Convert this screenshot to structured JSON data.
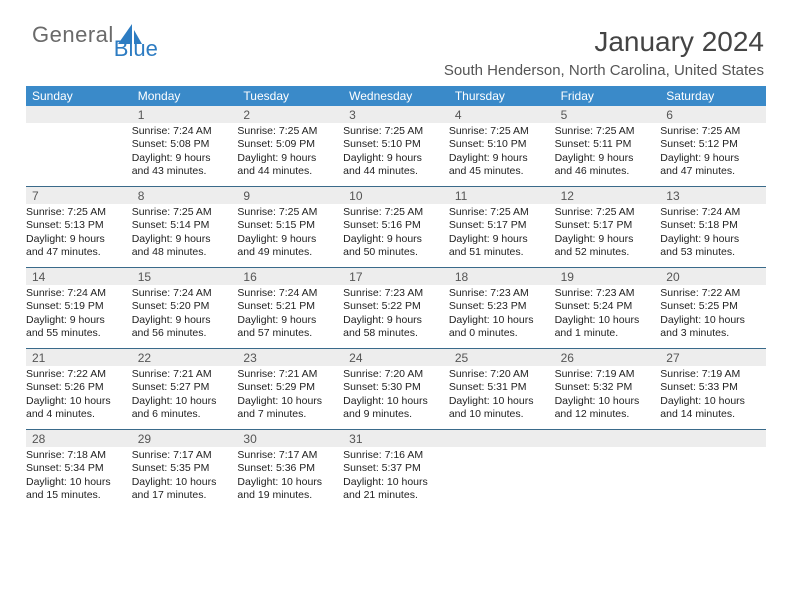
{
  "logo": {
    "text_general": "General",
    "text_blue": "Blue"
  },
  "header": {
    "title": "January 2024",
    "location": "South Henderson, North Carolina, United States"
  },
  "colors": {
    "header_bg": "#3a8ac9",
    "daynum_bg": "#ededed",
    "week_border": "#3a6a8a",
    "logo_blue": "#2d7cc2"
  },
  "day_names": [
    "Sunday",
    "Monday",
    "Tuesday",
    "Wednesday",
    "Thursday",
    "Friday",
    "Saturday"
  ],
  "weeks": [
    [
      {
        "day": "",
        "sunrise": "",
        "sunset": "",
        "daylight1": "",
        "daylight2": ""
      },
      {
        "day": "1",
        "sunrise": "Sunrise: 7:24 AM",
        "sunset": "Sunset: 5:08 PM",
        "daylight1": "Daylight: 9 hours",
        "daylight2": "and 43 minutes."
      },
      {
        "day": "2",
        "sunrise": "Sunrise: 7:25 AM",
        "sunset": "Sunset: 5:09 PM",
        "daylight1": "Daylight: 9 hours",
        "daylight2": "and 44 minutes."
      },
      {
        "day": "3",
        "sunrise": "Sunrise: 7:25 AM",
        "sunset": "Sunset: 5:10 PM",
        "daylight1": "Daylight: 9 hours",
        "daylight2": "and 44 minutes."
      },
      {
        "day": "4",
        "sunrise": "Sunrise: 7:25 AM",
        "sunset": "Sunset: 5:10 PM",
        "daylight1": "Daylight: 9 hours",
        "daylight2": "and 45 minutes."
      },
      {
        "day": "5",
        "sunrise": "Sunrise: 7:25 AM",
        "sunset": "Sunset: 5:11 PM",
        "daylight1": "Daylight: 9 hours",
        "daylight2": "and 46 minutes."
      },
      {
        "day": "6",
        "sunrise": "Sunrise: 7:25 AM",
        "sunset": "Sunset: 5:12 PM",
        "daylight1": "Daylight: 9 hours",
        "daylight2": "and 47 minutes."
      }
    ],
    [
      {
        "day": "7",
        "sunrise": "Sunrise: 7:25 AM",
        "sunset": "Sunset: 5:13 PM",
        "daylight1": "Daylight: 9 hours",
        "daylight2": "and 47 minutes."
      },
      {
        "day": "8",
        "sunrise": "Sunrise: 7:25 AM",
        "sunset": "Sunset: 5:14 PM",
        "daylight1": "Daylight: 9 hours",
        "daylight2": "and 48 minutes."
      },
      {
        "day": "9",
        "sunrise": "Sunrise: 7:25 AM",
        "sunset": "Sunset: 5:15 PM",
        "daylight1": "Daylight: 9 hours",
        "daylight2": "and 49 minutes."
      },
      {
        "day": "10",
        "sunrise": "Sunrise: 7:25 AM",
        "sunset": "Sunset: 5:16 PM",
        "daylight1": "Daylight: 9 hours",
        "daylight2": "and 50 minutes."
      },
      {
        "day": "11",
        "sunrise": "Sunrise: 7:25 AM",
        "sunset": "Sunset: 5:17 PM",
        "daylight1": "Daylight: 9 hours",
        "daylight2": "and 51 minutes."
      },
      {
        "day": "12",
        "sunrise": "Sunrise: 7:25 AM",
        "sunset": "Sunset: 5:17 PM",
        "daylight1": "Daylight: 9 hours",
        "daylight2": "and 52 minutes."
      },
      {
        "day": "13",
        "sunrise": "Sunrise: 7:24 AM",
        "sunset": "Sunset: 5:18 PM",
        "daylight1": "Daylight: 9 hours",
        "daylight2": "and 53 minutes."
      }
    ],
    [
      {
        "day": "14",
        "sunrise": "Sunrise: 7:24 AM",
        "sunset": "Sunset: 5:19 PM",
        "daylight1": "Daylight: 9 hours",
        "daylight2": "and 55 minutes."
      },
      {
        "day": "15",
        "sunrise": "Sunrise: 7:24 AM",
        "sunset": "Sunset: 5:20 PM",
        "daylight1": "Daylight: 9 hours",
        "daylight2": "and 56 minutes."
      },
      {
        "day": "16",
        "sunrise": "Sunrise: 7:24 AM",
        "sunset": "Sunset: 5:21 PM",
        "daylight1": "Daylight: 9 hours",
        "daylight2": "and 57 minutes."
      },
      {
        "day": "17",
        "sunrise": "Sunrise: 7:23 AM",
        "sunset": "Sunset: 5:22 PM",
        "daylight1": "Daylight: 9 hours",
        "daylight2": "and 58 minutes."
      },
      {
        "day": "18",
        "sunrise": "Sunrise: 7:23 AM",
        "sunset": "Sunset: 5:23 PM",
        "daylight1": "Daylight: 10 hours",
        "daylight2": "and 0 minutes."
      },
      {
        "day": "19",
        "sunrise": "Sunrise: 7:23 AM",
        "sunset": "Sunset: 5:24 PM",
        "daylight1": "Daylight: 10 hours",
        "daylight2": "and 1 minute."
      },
      {
        "day": "20",
        "sunrise": "Sunrise: 7:22 AM",
        "sunset": "Sunset: 5:25 PM",
        "daylight1": "Daylight: 10 hours",
        "daylight2": "and 3 minutes."
      }
    ],
    [
      {
        "day": "21",
        "sunrise": "Sunrise: 7:22 AM",
        "sunset": "Sunset: 5:26 PM",
        "daylight1": "Daylight: 10 hours",
        "daylight2": "and 4 minutes."
      },
      {
        "day": "22",
        "sunrise": "Sunrise: 7:21 AM",
        "sunset": "Sunset: 5:27 PM",
        "daylight1": "Daylight: 10 hours",
        "daylight2": "and 6 minutes."
      },
      {
        "day": "23",
        "sunrise": "Sunrise: 7:21 AM",
        "sunset": "Sunset: 5:29 PM",
        "daylight1": "Daylight: 10 hours",
        "daylight2": "and 7 minutes."
      },
      {
        "day": "24",
        "sunrise": "Sunrise: 7:20 AM",
        "sunset": "Sunset: 5:30 PM",
        "daylight1": "Daylight: 10 hours",
        "daylight2": "and 9 minutes."
      },
      {
        "day": "25",
        "sunrise": "Sunrise: 7:20 AM",
        "sunset": "Sunset: 5:31 PM",
        "daylight1": "Daylight: 10 hours",
        "daylight2": "and 10 minutes."
      },
      {
        "day": "26",
        "sunrise": "Sunrise: 7:19 AM",
        "sunset": "Sunset: 5:32 PM",
        "daylight1": "Daylight: 10 hours",
        "daylight2": "and 12 minutes."
      },
      {
        "day": "27",
        "sunrise": "Sunrise: 7:19 AM",
        "sunset": "Sunset: 5:33 PM",
        "daylight1": "Daylight: 10 hours",
        "daylight2": "and 14 minutes."
      }
    ],
    [
      {
        "day": "28",
        "sunrise": "Sunrise: 7:18 AM",
        "sunset": "Sunset: 5:34 PM",
        "daylight1": "Daylight: 10 hours",
        "daylight2": "and 15 minutes."
      },
      {
        "day": "29",
        "sunrise": "Sunrise: 7:17 AM",
        "sunset": "Sunset: 5:35 PM",
        "daylight1": "Daylight: 10 hours",
        "daylight2": "and 17 minutes."
      },
      {
        "day": "30",
        "sunrise": "Sunrise: 7:17 AM",
        "sunset": "Sunset: 5:36 PM",
        "daylight1": "Daylight: 10 hours",
        "daylight2": "and 19 minutes."
      },
      {
        "day": "31",
        "sunrise": "Sunrise: 7:16 AM",
        "sunset": "Sunset: 5:37 PM",
        "daylight1": "Daylight: 10 hours",
        "daylight2": "and 21 minutes."
      },
      {
        "day": "",
        "sunrise": "",
        "sunset": "",
        "daylight1": "",
        "daylight2": ""
      },
      {
        "day": "",
        "sunrise": "",
        "sunset": "",
        "daylight1": "",
        "daylight2": ""
      },
      {
        "day": "",
        "sunrise": "",
        "sunset": "",
        "daylight1": "",
        "daylight2": ""
      }
    ]
  ]
}
